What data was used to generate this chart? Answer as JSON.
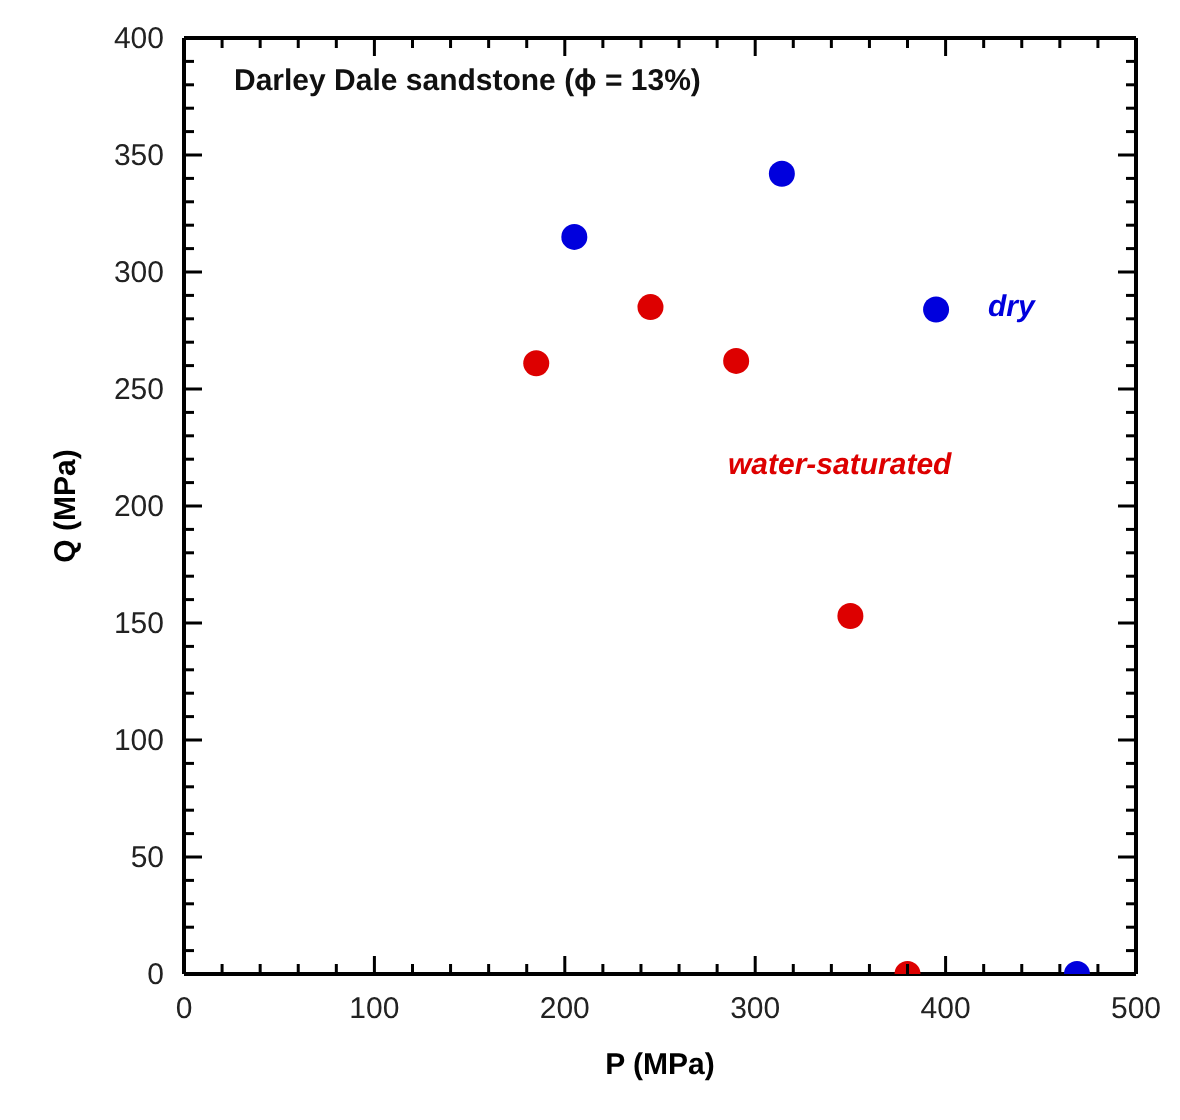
{
  "chart_data": {
    "type": "scatter",
    "xlabel": "P (MPa)",
    "ylabel": "Q (MPa)",
    "annotations": [
      "Darley Dale sandstone (ϕ = 13%)"
    ],
    "xlim": [
      0,
      500
    ],
    "ylim": [
      0,
      400
    ],
    "marker": "circle",
    "xticks": [
      0,
      {
        "value": 20,
        "label": null
      },
      {
        "value": 40,
        "label": null
      },
      {
        "value": 60,
        "label": null
      },
      {
        "value": 80,
        "label": null
      },
      100,
      {
        "value": 120,
        "label": null
      },
      {
        "value": 140,
        "label": null
      },
      {
        "value": 160,
        "label": null
      },
      {
        "value": 180,
        "label": null
      },
      200,
      {
        "value": 220,
        "label": null
      },
      {
        "value": 240,
        "label": null
      },
      {
        "value": 260,
        "label": null
      },
      {
        "value": 280,
        "label": null
      },
      300,
      {
        "value": 320,
        "label": null
      },
      {
        "value": 340,
        "label": null
      },
      {
        "value": 360,
        "label": null
      },
      {
        "value": 380,
        "label": null
      },
      400,
      {
        "value": 420,
        "label": null
      },
      {
        "value": 440,
        "label": null
      },
      {
        "value": 460,
        "label": null
      },
      {
        "value": 480,
        "label": null
      },
      500
    ],
    "yticks": [
      0,
      {
        "value": 10,
        "label": null
      },
      {
        "value": 20,
        "label": null
      },
      {
        "value": 30,
        "label": null
      },
      {
        "value": 40,
        "label": null
      },
      50,
      {
        "value": 60,
        "label": null
      },
      {
        "value": 70,
        "label": null
      },
      {
        "value": 80,
        "label": null
      },
      {
        "value": 90,
        "label": null
      },
      100,
      {
        "value": 110,
        "label": null
      },
      {
        "value": 120,
        "label": null
      },
      {
        "value": 130,
        "label": null
      },
      {
        "value": 140,
        "label": null
      },
      150,
      {
        "value": 160,
        "label": null
      },
      {
        "value": 170,
        "label": null
      },
      {
        "value": 180,
        "label": null
      },
      {
        "value": 190,
        "label": null
      },
      200,
      {
        "value": 210,
        "label": null
      },
      {
        "value": 220,
        "label": null
      },
      {
        "value": 230,
        "label": null
      },
      {
        "value": 240,
        "label": null
      },
      250,
      {
        "value": 260,
        "label": null
      },
      {
        "value": 270,
        "label": null
      },
      {
        "value": 280,
        "label": null
      },
      {
        "value": 290,
        "label": null
      },
      300,
      {
        "value": 310,
        "label": null
      },
      {
        "value": 320,
        "label": null
      },
      {
        "value": 330,
        "label": null
      },
      {
        "value": 340,
        "label": null
      },
      350,
      {
        "value": 360,
        "label": null
      },
      {
        "value": 370,
        "label": null
      },
      {
        "value": 380,
        "label": null
      },
      {
        "value": 390,
        "label": null
      },
      400
    ],
    "series": [
      {
        "name": "dry",
        "color": "#0000dd",
        "x": [
          205,
          314,
          395,
          469
        ],
        "values": [
          315,
          342,
          284,
          0
        ]
      },
      {
        "name": "water-saturated",
        "color": "#dd0000",
        "x": [
          185,
          245,
          290,
          350,
          380
        ],
        "values": [
          261,
          285,
          262,
          153,
          0
        ]
      }
    ]
  }
}
